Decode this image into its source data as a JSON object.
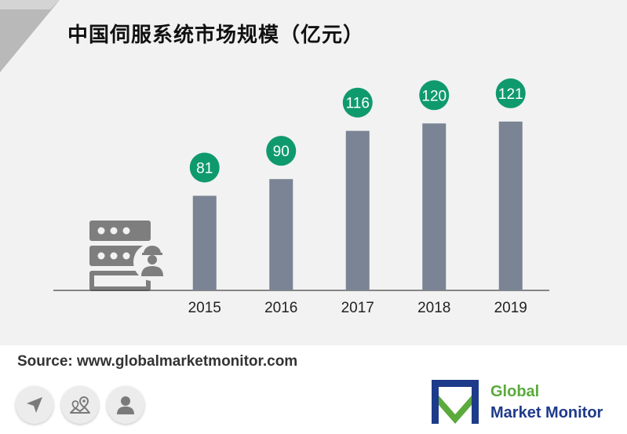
{
  "title": "中国伺服系统市场规模（亿元）",
  "source": "Source: www.globalmarketmonitor.com",
  "brand": {
    "line1": "Global",
    "line2": "Market  Monitor"
  },
  "colors": {
    "bar": "#7a8494",
    "bubble": "#0f9a6e",
    "axis": "#444444",
    "brand_green": "#5aaa3c",
    "brand_blue": "#1e3a8a"
  },
  "icons": [
    "server-worker-icon",
    "navigation-arrow-icon",
    "map-pins-icon",
    "user-icon"
  ],
  "chart_data": {
    "type": "bar",
    "title": "中国伺服系统市场规模（亿元）",
    "categories": [
      "2015",
      "2016",
      "2017",
      "2018",
      "2019"
    ],
    "values": [
      81,
      90,
      116,
      120,
      121
    ],
    "data_labels": [
      "81",
      "90",
      "116",
      "120",
      "121"
    ],
    "xlabel": "",
    "ylabel": "",
    "grid": false,
    "legend": "none"
  }
}
